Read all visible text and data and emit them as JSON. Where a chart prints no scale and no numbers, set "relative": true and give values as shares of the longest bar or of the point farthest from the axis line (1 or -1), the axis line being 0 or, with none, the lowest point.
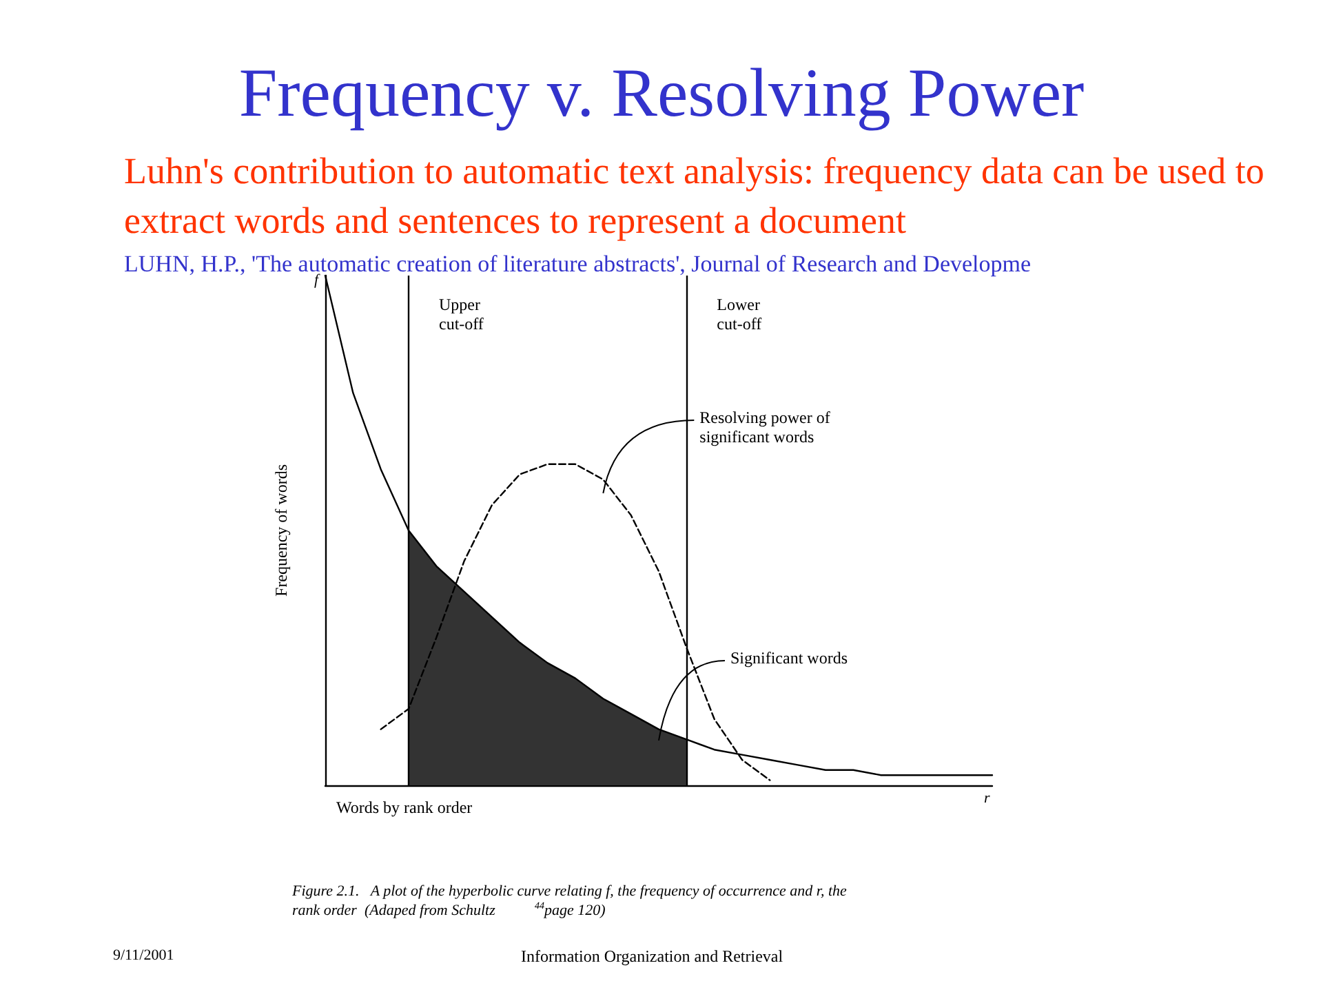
{
  "chart_data": {
    "type": "line",
    "title": "Frequency v. Resolving Power",
    "subtitle": "Luhn's contribution to automatic text analysis: frequency data can be used to extract words and sentences to represent a document",
    "xlabel": "Words by rank order",
    "ylabel": "Frequency of words",
    "annotations": [
      "f",
      "r",
      "LUHN, H.P., 'The automatic creation of literature abstracts', Journal of Research and Developme",
      "Figure 2.1.   A plot of the hyperbolic curve relating f, the frequency of occurrence and r, the rank order  (Adaped from Schultz$^{44}$page 120)",
      "9/11/2001",
      "Information Organization and Retrieval",
      "Upper cut-off",
      "Lower cut-off"
    ],
    "categories": [
      null,
      null,
      null,
      null,
      null,
      null,
      null,
      null,
      null,
      null,
      null,
      null,
      null,
      null,
      null,
      null,
      null,
      null,
      null,
      null,
      null,
      null,
      null,
      null,
      null
    ],
    "relative": true,
    "legend": false,
    "grid": false,
    "marker": "none",
    "series": [
      {
        "type": "area",
        "name": "Significant words",
        "color": "#333333",
        "values": [
          null,
          null,
          null,
          0.5,
          0.43,
          0.38,
          0.33,
          0.28,
          0.24,
          0.21,
          0.17,
          0.14,
          0.11,
          0.09,
          null,
          null,
          null,
          null,
          null,
          null,
          null,
          null,
          null,
          null,
          null
        ]
      },
      {
        "color": "#000000",
        "line_style": "solid",
        "values": [
          1.0,
          0.77,
          0.62,
          0.5,
          0.43,
          0.38,
          0.33,
          0.28,
          0.24,
          0.21,
          0.17,
          0.14,
          0.11,
          0.09,
          0.07,
          0.06,
          0.05,
          0.04,
          0.03,
          0.03,
          0.02,
          0.02,
          0.02,
          0.02,
          0.02
        ]
      },
      {
        "name": "Resolving power of significant words",
        "color": "#000000",
        "line_style": "dashed",
        "values": [
          null,
          null,
          0.11,
          0.15,
          0.29,
          0.44,
          0.55,
          0.61,
          0.63,
          0.63,
          0.6,
          0.53,
          0.42,
          0.27,
          0.13,
          0.05,
          0.01,
          null,
          null,
          null,
          null,
          null,
          null,
          null,
          null
        ]
      }
    ]
  }
}
